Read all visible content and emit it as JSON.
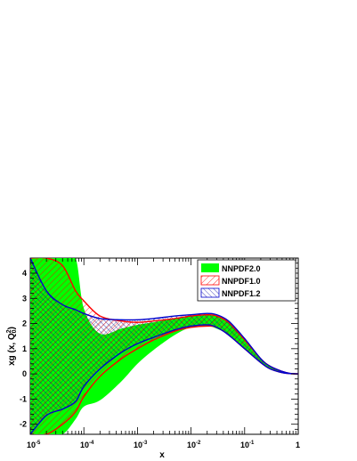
{
  "chart_data": {
    "type": "area",
    "xscale": "log",
    "xlim": [
      1e-05,
      1
    ],
    "ylim": [
      -2.4,
      4.6
    ],
    "xlabel": "x",
    "ylabel": "xg (x, Q",
    "ylabel_sup": "2",
    "ylabel_sub": "0",
    "ylabel_close": ")",
    "x_ticks": [
      {
        "base": "10",
        "exp": "-5",
        "value": 1e-05
      },
      {
        "base": "10",
        "exp": "-4",
        "value": 0.0001
      },
      {
        "base": "10",
        "exp": "-3",
        "value": 0.001
      },
      {
        "base": "10",
        "exp": "-2",
        "value": 0.01
      },
      {
        "base": "10",
        "exp": "-1",
        "value": 0.1
      },
      {
        "base": "1",
        "exp": "",
        "value": 1
      }
    ],
    "y_ticks": [
      "-2",
      "-1",
      "0",
      "1",
      "2",
      "3",
      "4"
    ],
    "y_tick_values": [
      -2,
      -1,
      0,
      1,
      2,
      3,
      4
    ],
    "legend_position": "top-right",
    "colors": {
      "nnpdf20": "#00ff00",
      "nnpdf10": "#ff0000",
      "nnpdf12": "#0000cc"
    },
    "series": [
      {
        "name": "NNPDF2.0",
        "style": "filled",
        "x": [
          1e-05,
          2e-05,
          4e-05,
          7e-05,
          0.0001,
          0.0002,
          0.0005,
          0.001,
          0.002,
          0.005,
          0.01,
          0.02,
          0.03,
          0.05,
          0.1,
          0.2,
          0.3,
          0.5,
          0.7,
          1.0
        ],
        "upper": [
          4.6,
          4.6,
          4.6,
          4.6,
          2.6,
          1.6,
          1.8,
          1.95,
          2.05,
          2.2,
          2.3,
          2.35,
          2.3,
          2.05,
          1.35,
          0.6,
          0.3,
          0.1,
          0.02,
          0.0
        ],
        "lower": [
          -2.4,
          -2.4,
          -2.4,
          -1.8,
          -1.3,
          -1.05,
          -0.3,
          0.4,
          0.95,
          1.55,
          1.85,
          1.9,
          1.8,
          1.55,
          1.0,
          0.45,
          0.2,
          0.05,
          0.01,
          0.0
        ]
      },
      {
        "name": "NNPDF1.0",
        "style": "hatched-diagonal",
        "x": [
          1e-05,
          2e-05,
          4e-05,
          7e-05,
          0.0001,
          0.0002,
          0.0005,
          0.001,
          0.002,
          0.005,
          0.01,
          0.02,
          0.03,
          0.05,
          0.1,
          0.2,
          0.3,
          0.5,
          0.7,
          1.0
        ],
        "upper": [
          4.6,
          4.6,
          4.3,
          3.3,
          2.9,
          2.3,
          2.1,
          2.05,
          2.1,
          2.2,
          2.3,
          2.35,
          2.3,
          2.05,
          1.35,
          0.6,
          0.3,
          0.1,
          0.02,
          0.0
        ],
        "lower": [
          -2.4,
          -2.4,
          -2.0,
          -1.5,
          -0.9,
          -0.1,
          0.6,
          1.0,
          1.35,
          1.7,
          1.85,
          1.9,
          1.85,
          1.55,
          1.0,
          0.45,
          0.2,
          0.05,
          0.01,
          0.0
        ]
      },
      {
        "name": "NNPDF1.2",
        "style": "hatched-cross",
        "x": [
          1e-05,
          2e-05,
          4e-05,
          7e-05,
          0.0001,
          0.0002,
          0.0005,
          0.001,
          0.002,
          0.005,
          0.01,
          0.02,
          0.03,
          0.05,
          0.1,
          0.2,
          0.3,
          0.5,
          0.7,
          1.0
        ],
        "upper": [
          4.6,
          3.3,
          2.75,
          2.55,
          2.4,
          2.2,
          2.15,
          2.15,
          2.2,
          2.3,
          2.35,
          2.4,
          2.35,
          2.1,
          1.4,
          0.6,
          0.3,
          0.1,
          0.02,
          0.0
        ],
        "lower": [
          -2.4,
          -1.65,
          -1.4,
          -1.1,
          -0.5,
          0.2,
          0.85,
          1.2,
          1.45,
          1.75,
          1.9,
          1.95,
          1.85,
          1.55,
          1.0,
          0.45,
          0.2,
          0.05,
          0.01,
          0.0
        ]
      }
    ]
  }
}
